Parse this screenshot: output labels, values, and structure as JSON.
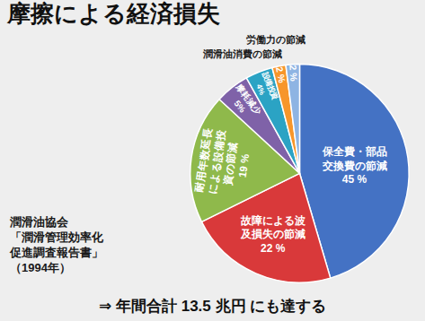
{
  "chart_data": {
    "type": "pie",
    "title": "摩擦による経済損失",
    "categories": [
      "保全費・部品交換費の節減",
      "故障による波及損失の節減",
      "耐用年数延長による設備投資の節減",
      "摩耗減少",
      "設備投資",
      "潤滑油消費の節減",
      "労働力の節減"
    ],
    "values": [
      45,
      22,
      19,
      5,
      4,
      2,
      2
    ],
    "value_labels": [
      "45 %",
      "22 %",
      "19 %",
      "5%",
      "4%",
      "2 %",
      "2 %"
    ],
    "colors": [
      "#4472c4",
      "#d9393a",
      "#8fb94b",
      "#7f62a8",
      "#2ba3c4",
      "#f7962b",
      "#8eb4e3"
    ],
    "data_labels": true,
    "source": [
      "潤滑油協会",
      "「潤滑管理効率化",
      "促進調査報告書」",
      "（1994年）"
    ],
    "annotation": "⇒ 年間合計 13.5 兆円 にも達する"
  }
}
